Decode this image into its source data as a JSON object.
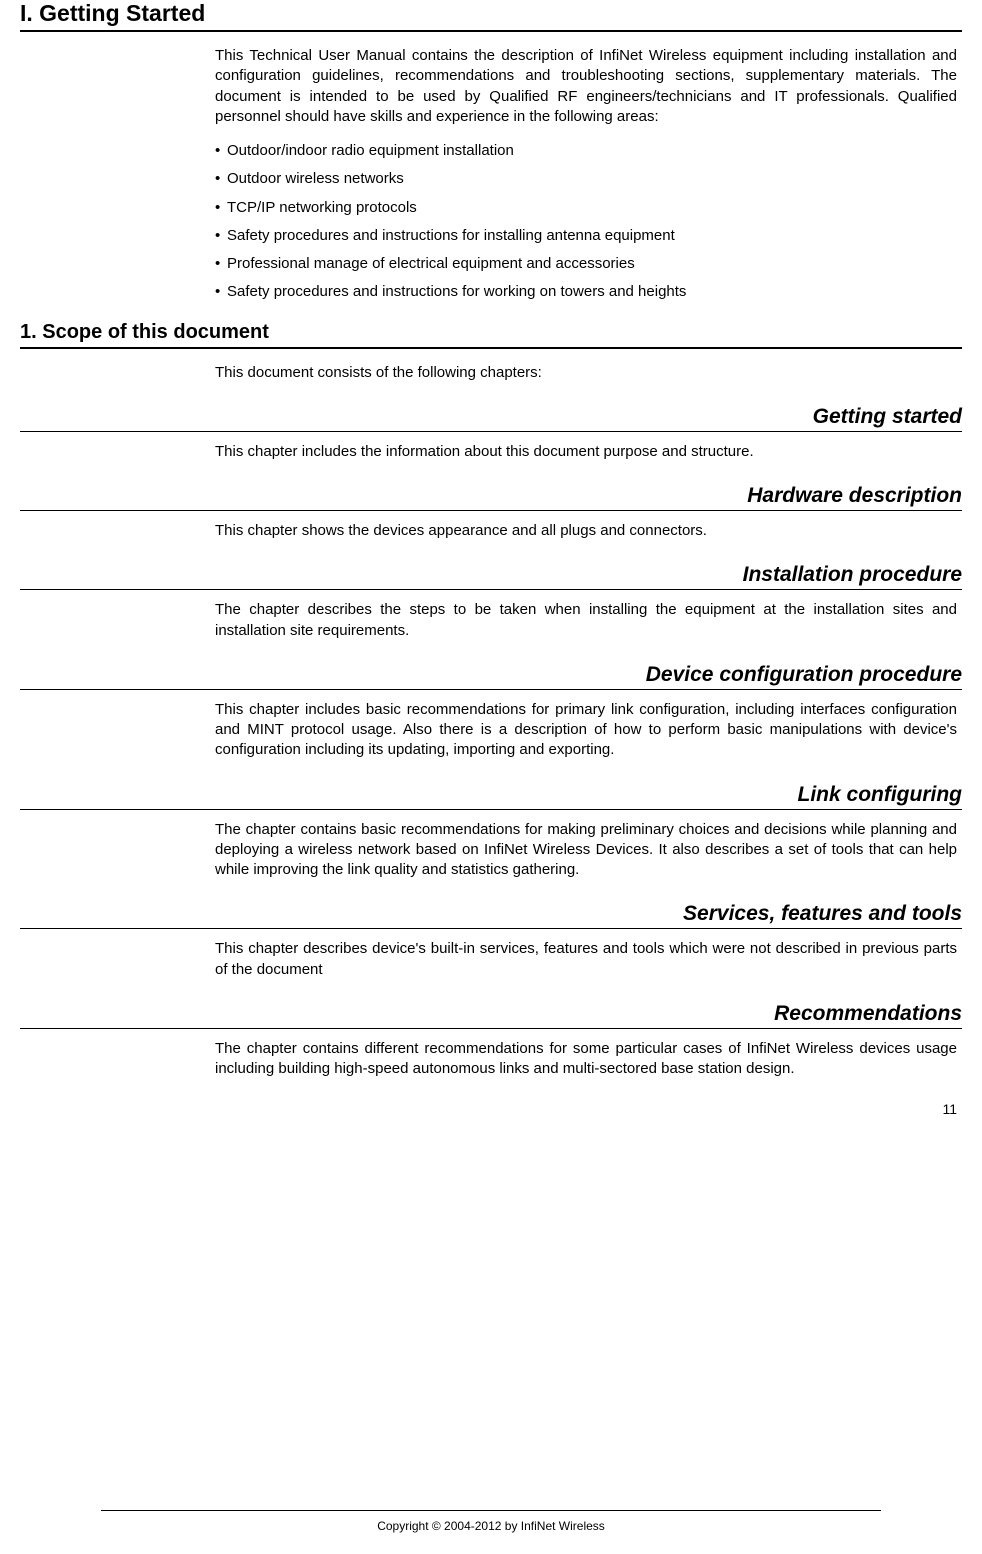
{
  "mainHeading": "I. Getting Started",
  "introPara": "This Technical User Manual contains the description of InfiNet Wireless equipment including installation and configuration guidelines, recommendations and troubleshooting sections, supplementary materials. The document is intended to be used by Qualified RF engineers/technicians and IT professionals. Qualified personnel should have skills and experience in the following areas:",
  "bullets": [
    "Outdoor/indoor radio equipment installation",
    "Outdoor wireless networks",
    "TCP/IP networking protocols",
    "Safety procedures and instructions for installing antenna equipment",
    "Professional manage of electrical equipment and accessories",
    "Safety procedures and instructions for working on towers and heights"
  ],
  "scopeHeading": "1. Scope of this document",
  "scopeIntro": "This document consists of the following chapters:",
  "sections": [
    {
      "title": "Getting started",
      "body": "This chapter includes the information about this document purpose and structure."
    },
    {
      "title": "Hardware description",
      "body": "This chapter shows the devices appearance and all plugs and connectors."
    },
    {
      "title": "Installation procedure",
      "body": "The chapter describes the steps to be taken when installing the equipment at the installation sites and installation site requirements."
    },
    {
      "title": "Device configuration procedure",
      "body": "This chapter includes basic recommendations for primary link configuration, including interfaces configuration and MINT protocol usage. Also there is a description of how to perform basic manipulations with device's configuration including its updating, importing and exporting."
    },
    {
      "title": "Link configuring",
      "body": "The chapter contains basic recommendations for making preliminary choices and decisions while planning and deploying a wireless network based on InfiNet Wireless Devices. It also describes a set of tools that can help while improving the link quality and statistics gathering."
    },
    {
      "title": "Services, features and tools",
      "body": "This chapter describes device's built-in services, features and tools which were not described in previous parts of the document"
    },
    {
      "title": "Recommendations",
      "body": "The chapter contains different recommendations for some particular cases of InfiNet Wireless devices usage including building high-speed autonomous links and multi-sectored base station design."
    }
  ],
  "pageNumber": "11",
  "footerText": "Copyright © 2004-2012 by InfiNet Wireless",
  "styling": {
    "backgroundColor": "#ffffff",
    "textColor": "#000000",
    "borderColor": "#000000",
    "mainHeadingFontSize": 23,
    "sectionHeadingFontSize": 20,
    "subsectionHeadingFontSize": 21,
    "bodyFontSize": 15,
    "footerFontSize": 12,
    "pageNumberFontSize": 14,
    "contentMarginLeft": 195,
    "fontFamily": "Verdana, Geneva, sans-serif"
  }
}
